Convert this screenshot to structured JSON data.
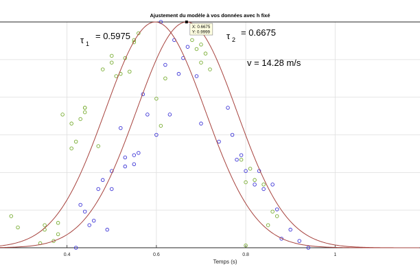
{
  "chart_data": {
    "type": "scatter",
    "title": "Ajustement du modèle à vos données avec h fixé",
    "xlabel": "Temps (s)",
    "ylabel": "",
    "xlim": [
      0.25,
      1.19
    ],
    "ylim": [
      0,
      1.0
    ],
    "x_ticks": [
      0.4,
      0.6,
      0.8,
      1
    ],
    "x_tick_labels": [
      "0.4",
      "0.6",
      "0.8",
      "1"
    ],
    "y_ticks": [
      0,
      0.1667,
      0.3333,
      0.5,
      0.6667,
      0.8333,
      1.0
    ],
    "grid": true,
    "annotations": {
      "tau1_symbol": "τ",
      "tau1_sub": "1",
      "tau1_value": "= 0.5975",
      "tau2_symbol": "τ",
      "tau2_sub": "2",
      "tau2_value": "= 0.6675",
      "velocity": "v = 14.28 m/s"
    },
    "datatip": {
      "x": 0.6675,
      "y": 0.9999,
      "x_text": "X: 0.6675",
      "y_text": "Y: 0.9999"
    },
    "fits": [
      {
        "center": 0.5975,
        "width": 0.1586,
        "color": "#a6413c"
      },
      {
        "center": 0.6675,
        "width": 0.1586,
        "color": "#a6413c"
      }
    ],
    "series": [
      {
        "color": "#77ac30",
        "points": [
          [
            0.275,
            0.14
          ],
          [
            0.29,
            0.09
          ],
          [
            0.34,
            0.02
          ],
          [
            0.35,
            0.1
          ],
          [
            0.35,
            0.08
          ],
          [
            0.37,
            0.03
          ],
          [
            0.38,
            0.11
          ],
          [
            0.38,
            0.06
          ],
          [
            0.39,
            0.59
          ],
          [
            0.41,
            0.44
          ],
          [
            0.41,
            0.55
          ],
          [
            0.42,
            0.47
          ],
          [
            0.43,
            0.57
          ],
          [
            0.44,
            0.6
          ],
          [
            0.44,
            0.62
          ],
          [
            0.44,
            0.62
          ],
          [
            0.47,
            0.45
          ],
          [
            0.48,
            0.79
          ],
          [
            0.5,
            0.85
          ],
          [
            0.5,
            0.82
          ],
          [
            0.51,
            0.76
          ],
          [
            0.52,
            0.77
          ],
          [
            0.53,
            0.84
          ],
          [
            0.54,
            0.78
          ],
          [
            0.55,
            0.91
          ],
          [
            0.55,
            0.92
          ],
          [
            0.56,
            0.95
          ],
          [
            0.6,
            0.66
          ],
          [
            0.61,
            0.54
          ],
          [
            0.62,
            0.75
          ],
          [
            0.68,
            0.92
          ],
          [
            0.69,
            0.88
          ],
          [
            0.7,
            0.9
          ],
          [
            0.7,
            0.82
          ],
          [
            0.71,
            0.86
          ],
          [
            0.72,
            0.79
          ],
          [
            0.79,
            0.39
          ],
          [
            0.8,
            0.29
          ],
          [
            0.81,
            0.35
          ],
          [
            0.82,
            0.3
          ],
          [
            0.84,
            0.28
          ],
          [
            0.86,
            0.16
          ],
          [
            0.87,
            0.14
          ],
          [
            0.8,
            0.01
          ],
          [
            0.85,
            0.1
          ]
        ]
      },
      {
        "color": "#3b33d6",
        "points": [
          [
            0.42,
            0.0
          ],
          [
            0.43,
            0.19
          ],
          [
            0.44,
            0.16
          ],
          [
            0.45,
            0.1
          ],
          [
            0.46,
            0.12
          ],
          [
            0.47,
            0.26
          ],
          [
            0.48,
            0.3
          ],
          [
            0.49,
            0.08
          ],
          [
            0.5,
            0.26
          ],
          [
            0.5,
            0.34
          ],
          [
            0.52,
            0.53
          ],
          [
            0.53,
            0.36
          ],
          [
            0.53,
            0.4
          ],
          [
            0.55,
            0.37
          ],
          [
            0.55,
            0.41
          ],
          [
            0.56,
            0.42
          ],
          [
            0.57,
            0.68
          ],
          [
            0.58,
            0.59
          ],
          [
            0.6,
            0.5
          ],
          [
            0.61,
            1.0
          ],
          [
            0.62,
            0.81
          ],
          [
            0.63,
            0.59
          ],
          [
            0.64,
            0.92
          ],
          [
            0.65,
            0.77
          ],
          [
            0.66,
            0.84
          ],
          [
            0.67,
            0.89
          ],
          [
            0.69,
            0.76
          ],
          [
            0.7,
            0.55
          ],
          [
            0.74,
            0.47
          ],
          [
            0.76,
            0.62
          ],
          [
            0.77,
            0.5
          ],
          [
            0.78,
            0.39
          ],
          [
            0.79,
            0.41
          ],
          [
            0.8,
            0.34
          ],
          [
            0.82,
            0.28
          ],
          [
            0.83,
            0.34
          ],
          [
            0.84,
            0.26
          ],
          [
            0.86,
            0.28
          ],
          [
            0.87,
            0.17
          ],
          [
            0.88,
            0.04
          ],
          [
            0.9,
            0.08
          ],
          [
            0.92,
            0.03
          ],
          [
            0.94,
            0.0
          ]
        ]
      }
    ]
  }
}
